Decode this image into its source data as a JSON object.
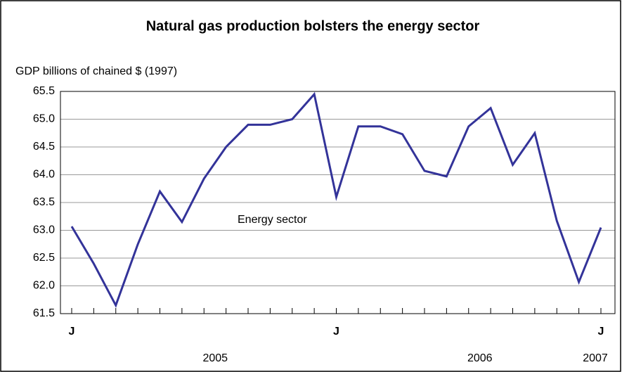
{
  "chart_data": {
    "type": "line",
    "title": "Natural gas production bolsters the energy sector",
    "y_label": "GDP billions of chained $ (1997)",
    "annotation": "Energy sector",
    "categories": [
      "J",
      null,
      null,
      null,
      null,
      null,
      null,
      null,
      null,
      null,
      null,
      null,
      "J",
      null,
      null,
      null,
      null,
      null,
      null,
      null,
      null,
      null,
      null,
      null,
      "J"
    ],
    "year_labels": [
      "2005",
      "2006",
      "2007"
    ],
    "series": [
      {
        "name": "Energy sector",
        "color": "#333399",
        "values": [
          63.07,
          62.4,
          61.65,
          62.75,
          63.7,
          63.15,
          63.93,
          64.5,
          64.9,
          64.9,
          65.0,
          65.45,
          63.6,
          64.87,
          64.87,
          64.73,
          64.07,
          63.97,
          64.87,
          65.2,
          64.18,
          64.75,
          63.17,
          62.07,
          63.05
        ]
      }
    ],
    "ylim": [
      61.5,
      65.5
    ],
    "yticks": [
      61.5,
      {
        "value": 62,
        "label": "62.0"
      },
      62.5,
      {
        "value": 63,
        "label": "63.0"
      },
      63.5,
      {
        "value": 64,
        "label": "64.0"
      },
      64.5,
      {
        "value": 65,
        "label": "65.0"
      },
      65.5
    ],
    "grid": true
  }
}
